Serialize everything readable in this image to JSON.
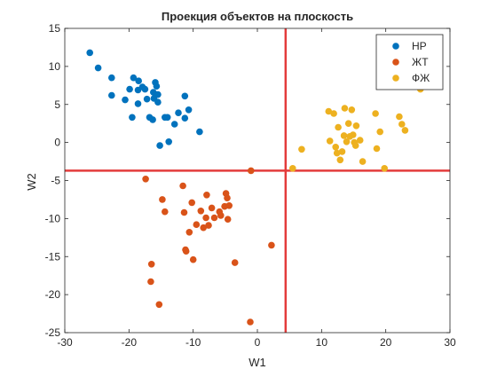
{
  "chart_data": {
    "type": "scatter",
    "title": "Проекция объектов на плоскость",
    "xlabel": "W1",
    "ylabel": "W2",
    "xlim": [
      -30,
      30
    ],
    "ylim": [
      -25,
      15
    ],
    "xticks": [
      -30,
      -20,
      -10,
      0,
      10,
      20,
      30
    ],
    "yticks": [
      -25,
      -20,
      -15,
      -10,
      -5,
      0,
      5,
      10,
      15
    ],
    "xtick_labels": [
      "-30",
      "-20",
      "-10",
      "0",
      "10",
      "20",
      "30"
    ],
    "ytick_labels": [
      "-25",
      "-20",
      "-15",
      "-10",
      "-5",
      "0",
      "5",
      "10",
      "15"
    ],
    "grid": false,
    "legend_position": "top-right",
    "reference_lines": {
      "vertical_x": 4.4,
      "horizontal_y": -3.7,
      "color": "#e33b3b"
    },
    "series": [
      {
        "name": "НР",
        "color": "#0072BD",
        "points": [
          [
            -26.1,
            11.8
          ],
          [
            -24.8,
            9.8
          ],
          [
            -22.7,
            8.5
          ],
          [
            -22.7,
            6.2
          ],
          [
            -20.6,
            5.6
          ],
          [
            -19.9,
            7.0
          ],
          [
            -19.3,
            8.5
          ],
          [
            -19.5,
            3.3
          ],
          [
            -18.6,
            5.1
          ],
          [
            -18.6,
            6.9
          ],
          [
            -18.5,
            8.1
          ],
          [
            -17.9,
            7.3
          ],
          [
            -17.5,
            7.0
          ],
          [
            -17.2,
            5.7
          ],
          [
            -16.8,
            3.3
          ],
          [
            -16.3,
            3.0
          ],
          [
            -16.1,
            5.8
          ],
          [
            -16.2,
            6.6
          ],
          [
            -15.9,
            7.9
          ],
          [
            -15.7,
            7.4
          ],
          [
            -15.5,
            6.3
          ],
          [
            -15.5,
            5.3
          ],
          [
            -14.4,
            3.3
          ],
          [
            -14.0,
            3.3
          ],
          [
            -12.9,
            2.4
          ],
          [
            -12.3,
            3.9
          ],
          [
            -11.3,
            3.2
          ],
          [
            -11.3,
            6.1
          ],
          [
            -10.7,
            4.3
          ],
          [
            -15.2,
            -0.4
          ],
          [
            -13.8,
            0.1
          ],
          [
            -9.0,
            1.4
          ]
        ]
      },
      {
        "name": "ЖТ",
        "color": "#D95319",
        "points": [
          [
            -17.4,
            -4.8
          ],
          [
            -14.8,
            -7.5
          ],
          [
            -14.4,
            -9.1
          ],
          [
            -11.6,
            -5.7
          ],
          [
            -11.4,
            -9.2
          ],
          [
            -11.2,
            -14.1
          ],
          [
            -11.1,
            -14.3
          ],
          [
            -10.6,
            -11.8
          ],
          [
            -10.2,
            -7.9
          ],
          [
            -10.0,
            -15.4
          ],
          [
            -9.5,
            -10.8
          ],
          [
            -8.8,
            -9.0
          ],
          [
            -8.4,
            -11.2
          ],
          [
            -8.0,
            -9.9
          ],
          [
            -7.9,
            -6.9
          ],
          [
            -7.6,
            -10.9
          ],
          [
            -7.1,
            -8.6
          ],
          [
            -6.7,
            -9.9
          ],
          [
            -5.9,
            -9.1
          ],
          [
            -5.7,
            -9.6
          ],
          [
            -5.1,
            -8.4
          ],
          [
            -4.9,
            -6.7
          ],
          [
            -4.7,
            -7.3
          ],
          [
            -4.6,
            -10.1
          ],
          [
            -4.4,
            -8.3
          ],
          [
            -3.5,
            -15.8
          ],
          [
            -16.5,
            -16.0
          ],
          [
            -16.6,
            -18.3
          ],
          [
            -15.3,
            -21.3
          ],
          [
            -1.0,
            -3.7
          ],
          [
            2.2,
            -13.5
          ],
          [
            -1.1,
            -23.6
          ]
        ]
      },
      {
        "name": "ФЖ",
        "color": "#EDB120",
        "points": [
          [
            5.5,
            -3.4
          ],
          [
            6.9,
            -0.9
          ],
          [
            11.1,
            4.1
          ],
          [
            11.3,
            0.2
          ],
          [
            11.9,
            3.8
          ],
          [
            12.2,
            -0.6
          ],
          [
            12.4,
            -1.4
          ],
          [
            12.6,
            2.0
          ],
          [
            12.9,
            -2.3
          ],
          [
            13.2,
            -1.2
          ],
          [
            13.5,
            0.9
          ],
          [
            13.6,
            4.5
          ],
          [
            13.9,
            0.1
          ],
          [
            14.2,
            2.5
          ],
          [
            14.4,
            0.8
          ],
          [
            14.7,
            4.3
          ],
          [
            14.9,
            1.0
          ],
          [
            15.1,
            0.0
          ],
          [
            15.3,
            -0.4
          ],
          [
            15.4,
            2.2
          ],
          [
            16.0,
            0.3
          ],
          [
            16.4,
            -2.5
          ],
          [
            18.4,
            3.8
          ],
          [
            18.6,
            -0.8
          ],
          [
            19.1,
            1.4
          ],
          [
            19.8,
            -3.4
          ],
          [
            22.1,
            3.4
          ],
          [
            22.5,
            2.4
          ],
          [
            23.0,
            1.6
          ],
          [
            25.4,
            7.0
          ]
        ]
      }
    ]
  }
}
